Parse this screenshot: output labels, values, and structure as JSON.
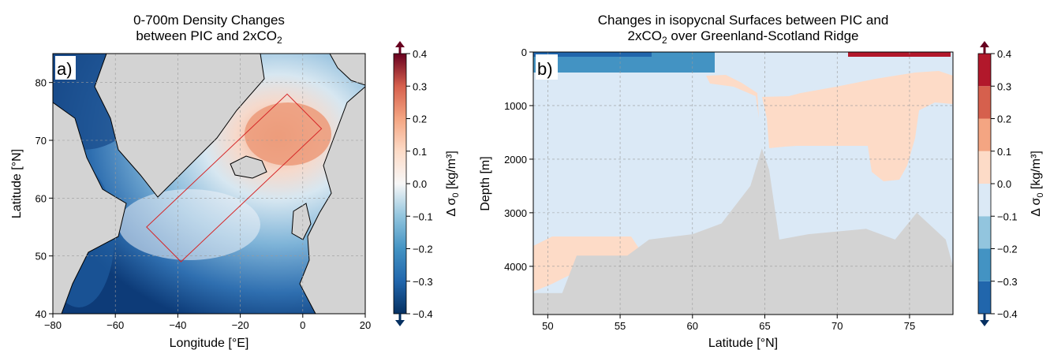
{
  "chart_data": [
    {
      "type": "heatmap",
      "panel_label": "a)",
      "title": [
        "0-700m Density Changes",
        "between PIC and 2xCO"
      ],
      "title_subscript": "2",
      "xlabel": "Longitude [°E]",
      "ylabel": "Latitude [°N]",
      "xlim": [
        -80,
        20
      ],
      "ylim": [
        40,
        85
      ],
      "xticks": [
        -80,
        -60,
        -40,
        -20,
        0,
        20
      ],
      "yticks": [
        40,
        50,
        60,
        70,
        80
      ],
      "grid": true,
      "colorbar": {
        "label": "Δ σ",
        "label_sub": "0",
        "label_unit": " [kg/m³]",
        "range": [
          -0.4,
          0.4
        ],
        "ticks": [
          "0.4",
          "0.3",
          "0.2",
          "0.1",
          "0.0",
          "−0.1",
          "−0.2",
          "−0.3",
          "−0.4"
        ],
        "colormap": "RdBu_r",
        "extend": "both"
      },
      "section_box_lonlat": [
        [
          -50,
          55
        ],
        [
          -5,
          78
        ],
        [
          6,
          72
        ],
        [
          -39,
          49
        ]
      ],
      "land_color": "#d3d3d3"
    },
    {
      "type": "heatmap",
      "panel_label": "b)",
      "title": [
        "Changes in isopycnal Surfaces between PIC and",
        "2xCO"
      ],
      "title_subscript": "2",
      "title_suffix": " over Greenland-Scotland Ridge",
      "xlabel": "Latitude [°N]",
      "ylabel": "Depth [m]",
      "xlim": [
        49,
        78
      ],
      "ylim": [
        4900,
        0
      ],
      "xticks": [
        50,
        55,
        60,
        65,
        70,
        75
      ],
      "yticks": [
        0,
        1000,
        2000,
        3000,
        4000
      ],
      "grid": true,
      "colorbar": {
        "label": "Δ σ",
        "label_sub": "0",
        "label_unit": " [kg/m³]",
        "levels": [
          -0.4,
          -0.3,
          -0.2,
          -0.1,
          0.0,
          0.1,
          0.2,
          0.3,
          0.4
        ],
        "ticks": [
          "0.4",
          "0.3",
          "0.2",
          "0.1",
          "0.0",
          "−0.1",
          "−0.2",
          "−0.3",
          "−0.4"
        ],
        "colors": [
          "#053061",
          "#2166ac",
          "#4393c3",
          "#92c5de",
          "#dbe9f6",
          "#fddbc7",
          "#f4a582",
          "#d6604d",
          "#b2182b",
          "#67001f"
        ],
        "extend": "both"
      },
      "bathymetry": [
        [
          49,
          4500
        ],
        [
          51,
          4500
        ],
        [
          52,
          3800
        ],
        [
          55.5,
          3800
        ],
        [
          57,
          3500
        ],
        [
          60,
          3400
        ],
        [
          62,
          3200
        ],
        [
          64,
          2500
        ],
        [
          64.8,
          1800
        ],
        [
          65.3,
          2200
        ],
        [
          66,
          3500
        ],
        [
          68,
          3400
        ],
        [
          72,
          3300
        ],
        [
          74,
          3500
        ],
        [
          75.5,
          3000
        ],
        [
          77.5,
          3500
        ],
        [
          78,
          4000
        ]
      ],
      "land_color": "#d3d3d3"
    }
  ]
}
